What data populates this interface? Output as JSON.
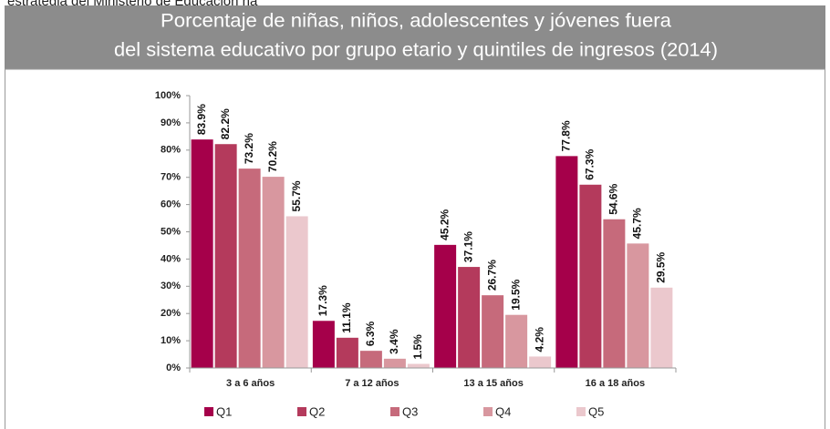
{
  "intro_text": "estrategia del Ministerio de Educación ha",
  "chart_data": {
    "type": "bar",
    "title": [
      "Porcentaje de niñas, niños, adolescentes y jóvenes fuera",
      "del sistema educativo por grupo etario y quintiles de ingresos (2014)"
    ],
    "categories": [
      "3 a 6 años",
      "7 a 12 años",
      "13 a 15 años",
      "16 a 18 años"
    ],
    "series": [
      {
        "name": "Q1",
        "color": "#a5004a",
        "values": [
          83.9,
          17.3,
          45.2,
          77.8
        ],
        "value_labels": [
          "83.9%",
          "17.3%",
          "45.2%",
          "77.8%"
        ]
      },
      {
        "name": "Q2",
        "color": "#b43a5c",
        "values": [
          82.2,
          11.1,
          37.1,
          67.3
        ],
        "value_labels": [
          "82.2%",
          "11.1%",
          "37.1%",
          "67.3%"
        ]
      },
      {
        "name": "Q3",
        "color": "#c66a7b",
        "values": [
          73.2,
          6.3,
          26.7,
          54.6
        ],
        "value_labels": [
          "73.2%",
          "6.3%",
          "26.7%",
          "54.6%"
        ]
      },
      {
        "name": "Q4",
        "color": "#d8979f",
        "values": [
          70.2,
          3.4,
          19.5,
          45.7
        ],
        "value_labels": [
          "70.2%",
          "3.4%",
          "19.5%",
          "45.7%"
        ]
      },
      {
        "name": "Q5",
        "color": "#ebc8cd",
        "values": [
          55.7,
          1.5,
          4.2,
          29.5
        ],
        "value_labels": [
          "55.7%",
          "1.5%",
          "4.2%",
          "29.5%"
        ]
      }
    ],
    "ylim": [
      0,
      100
    ],
    "yticks": [
      {
        "value": 0,
        "label": "0%"
      },
      {
        "value": 10,
        "label": "10%"
      },
      {
        "value": 20,
        "label": "20%"
      },
      {
        "value": 30,
        "label": "30%"
      },
      {
        "value": 40,
        "label": "40%"
      },
      {
        "value": 50,
        "label": "50%"
      },
      {
        "value": 60,
        "label": "60%"
      },
      {
        "value": 70,
        "label": "70%"
      },
      {
        "value": 80,
        "label": "80%"
      },
      {
        "value": 90,
        "label": "90%"
      },
      {
        "value": 100,
        "label": "100%"
      }
    ],
    "legend": "bottom"
  }
}
